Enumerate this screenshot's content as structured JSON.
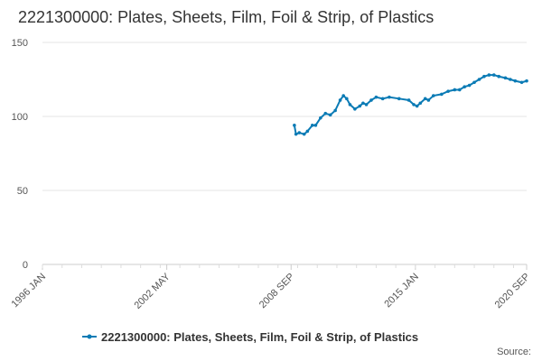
{
  "chart_data": {
    "type": "line",
    "title": "2221300000: Plates, Sheets, Film, Foil & Strip, of Plastics",
    "source": "Source:",
    "x": [
      "2008 NOV",
      "2008 DEC",
      "2009 FEB",
      "2009 MAY",
      "2009 JUL",
      "2009 OCT",
      "2009 DEC",
      "2010 MAR",
      "2010 JUN",
      "2010 SEP",
      "2010 DEC",
      "2011 MAR",
      "2011 MAY",
      "2011 JUL",
      "2011 SEP",
      "2011 DEC",
      "2012 MAR",
      "2012 MAY",
      "2012 JUL",
      "2012 OCT",
      "2013 JAN",
      "2013 MAY",
      "2013 SEP",
      "2014 MAR",
      "2014 SEP",
      "2014 DEC",
      "2015 FEB",
      "2015 APR",
      "2015 JUL",
      "2015 SEP",
      "2015 DEC",
      "2016 MAY",
      "2016 SEP",
      "2017 JAN",
      "2017 APR",
      "2017 JUL",
      "2017 OCT",
      "2018 JAN",
      "2018 APR",
      "2018 JUL",
      "2018 OCT",
      "2019 JAN",
      "2019 APR",
      "2019 AUG",
      "2019 NOV",
      "2020 FEB",
      "2020 JUN",
      "2020 SEP"
    ],
    "series": [
      {
        "name": "2221300000: Plates, Sheets, Film, Foil & Strip, of Plastics",
        "color": "#0b7bb5",
        "values": [
          94,
          88,
          89,
          88,
          90,
          94,
          94,
          99,
          102,
          101,
          104,
          111,
          114,
          112,
          108,
          105,
          107,
          109,
          108,
          111,
          113,
          112,
          113,
          112,
          111,
          108,
          107,
          109,
          112,
          111,
          114,
          115,
          117,
          118,
          118,
          120,
          121,
          123,
          125,
          127,
          128,
          128,
          127,
          126,
          125,
          124,
          123,
          124
        ]
      }
    ],
    "xlim": [
      "1996 JAN",
      "2020 SEP"
    ],
    "xticks": [
      "1996 JAN",
      "2002 MAY",
      "2008 SEP",
      "2015 JAN",
      "2020 SEP"
    ],
    "ylim": [
      0,
      150
    ],
    "yticks": [
      0,
      50,
      100,
      150
    ],
    "grid": true,
    "legend": "bottom"
  }
}
